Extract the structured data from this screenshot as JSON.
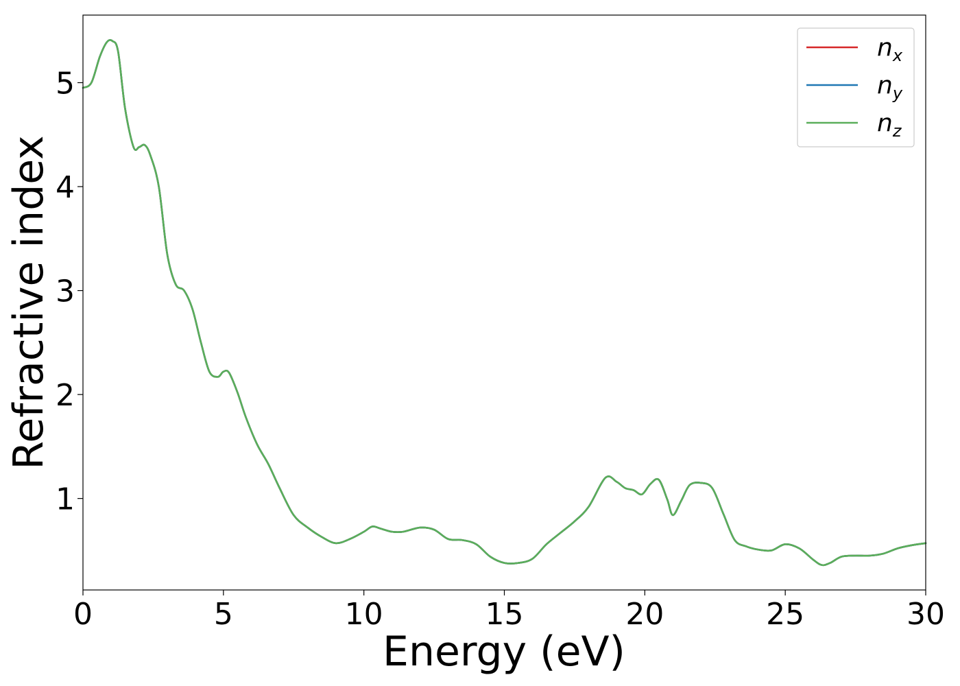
{
  "chart_data": {
    "type": "line",
    "xlabel": "Energy (eV)",
    "ylabel": "Refractive index",
    "xlim": [
      0,
      30
    ],
    "ylim": [
      0.12,
      5.65
    ],
    "xticks": [
      0,
      5,
      10,
      15,
      20,
      25,
      30
    ],
    "yticks": [
      1,
      2,
      3,
      4,
      5
    ],
    "grid": false,
    "legend_position": "top-right",
    "x": [
      0,
      0.3,
      0.6,
      0.85,
      1.05,
      1.25,
      1.5,
      1.8,
      2.0,
      2.2,
      2.4,
      2.7,
      3.0,
      3.3,
      3.6,
      3.9,
      4.2,
      4.5,
      4.8,
      5.0,
      5.2,
      5.5,
      5.8,
      6.2,
      6.6,
      7.0,
      7.5,
      8.0,
      8.5,
      9.0,
      9.5,
      10.0,
      10.3,
      10.6,
      11.0,
      11.4,
      12.0,
      12.5,
      13.0,
      13.5,
      14.0,
      14.5,
      15.0,
      15.5,
      16.0,
      16.5,
      17.0,
      17.5,
      18.0,
      18.6,
      19.0,
      19.3,
      19.6,
      19.9,
      20.2,
      20.5,
      20.8,
      21.0,
      21.3,
      21.6,
      22.0,
      22.4,
      22.8,
      23.2,
      23.6,
      24.0,
      24.5,
      25.0,
      25.5,
      26.0,
      26.3,
      26.6,
      27.0,
      27.5,
      28.0,
      28.5,
      29.0,
      29.5,
      30.0
    ],
    "series": [
      {
        "name": "n_x",
        "color": "#d62728",
        "values": [
          4.95,
          5.0,
          5.25,
          5.39,
          5.4,
          5.3,
          4.75,
          4.38,
          4.38,
          4.4,
          4.3,
          4.0,
          3.35,
          3.06,
          3.0,
          2.82,
          2.5,
          2.22,
          2.17,
          2.22,
          2.21,
          2.02,
          1.78,
          1.52,
          1.33,
          1.1,
          0.84,
          0.72,
          0.63,
          0.57,
          0.61,
          0.68,
          0.73,
          0.71,
          0.68,
          0.68,
          0.72,
          0.7,
          0.61,
          0.6,
          0.56,
          0.44,
          0.38,
          0.38,
          0.42,
          0.56,
          0.67,
          0.78,
          0.92,
          1.2,
          1.16,
          1.1,
          1.08,
          1.04,
          1.14,
          1.18,
          0.99,
          0.84,
          0.98,
          1.13,
          1.15,
          1.1,
          0.85,
          0.6,
          0.54,
          0.51,
          0.5,
          0.56,
          0.52,
          0.41,
          0.36,
          0.38,
          0.44,
          0.45,
          0.45,
          0.47,
          0.52,
          0.55,
          0.57
        ]
      },
      {
        "name": "n_y",
        "color": "#1f77b4",
        "values": [
          4.95,
          5.0,
          5.25,
          5.39,
          5.4,
          5.3,
          4.75,
          4.38,
          4.38,
          4.4,
          4.3,
          4.0,
          3.35,
          3.06,
          3.0,
          2.82,
          2.5,
          2.22,
          2.17,
          2.22,
          2.21,
          2.02,
          1.78,
          1.52,
          1.33,
          1.1,
          0.84,
          0.72,
          0.63,
          0.57,
          0.61,
          0.68,
          0.73,
          0.71,
          0.68,
          0.68,
          0.72,
          0.7,
          0.61,
          0.6,
          0.56,
          0.44,
          0.38,
          0.38,
          0.42,
          0.56,
          0.67,
          0.78,
          0.92,
          1.2,
          1.16,
          1.1,
          1.08,
          1.04,
          1.14,
          1.18,
          0.99,
          0.84,
          0.98,
          1.13,
          1.15,
          1.1,
          0.85,
          0.6,
          0.54,
          0.51,
          0.5,
          0.56,
          0.52,
          0.41,
          0.36,
          0.38,
          0.44,
          0.45,
          0.45,
          0.47,
          0.52,
          0.55,
          0.57
        ]
      },
      {
        "name": "n_z",
        "color": "#5aae5a",
        "values": [
          4.95,
          5.0,
          5.25,
          5.39,
          5.4,
          5.3,
          4.75,
          4.38,
          4.38,
          4.4,
          4.3,
          4.0,
          3.35,
          3.06,
          3.0,
          2.82,
          2.5,
          2.22,
          2.17,
          2.22,
          2.21,
          2.02,
          1.78,
          1.52,
          1.33,
          1.1,
          0.84,
          0.72,
          0.63,
          0.57,
          0.61,
          0.68,
          0.73,
          0.71,
          0.68,
          0.68,
          0.72,
          0.7,
          0.61,
          0.6,
          0.56,
          0.44,
          0.38,
          0.38,
          0.42,
          0.56,
          0.67,
          0.78,
          0.92,
          1.2,
          1.16,
          1.1,
          1.08,
          1.04,
          1.14,
          1.18,
          0.99,
          0.84,
          0.98,
          1.13,
          1.15,
          1.1,
          0.85,
          0.6,
          0.54,
          0.51,
          0.5,
          0.56,
          0.52,
          0.41,
          0.36,
          0.38,
          0.44,
          0.45,
          0.45,
          0.47,
          0.52,
          0.55,
          0.57
        ]
      }
    ],
    "legend": [
      {
        "base": "n",
        "sub": "x",
        "color": "#d62728"
      },
      {
        "base": "n",
        "sub": "y",
        "color": "#1f77b4"
      },
      {
        "base": "n",
        "sub": "z",
        "color": "#5aae5a"
      }
    ]
  }
}
